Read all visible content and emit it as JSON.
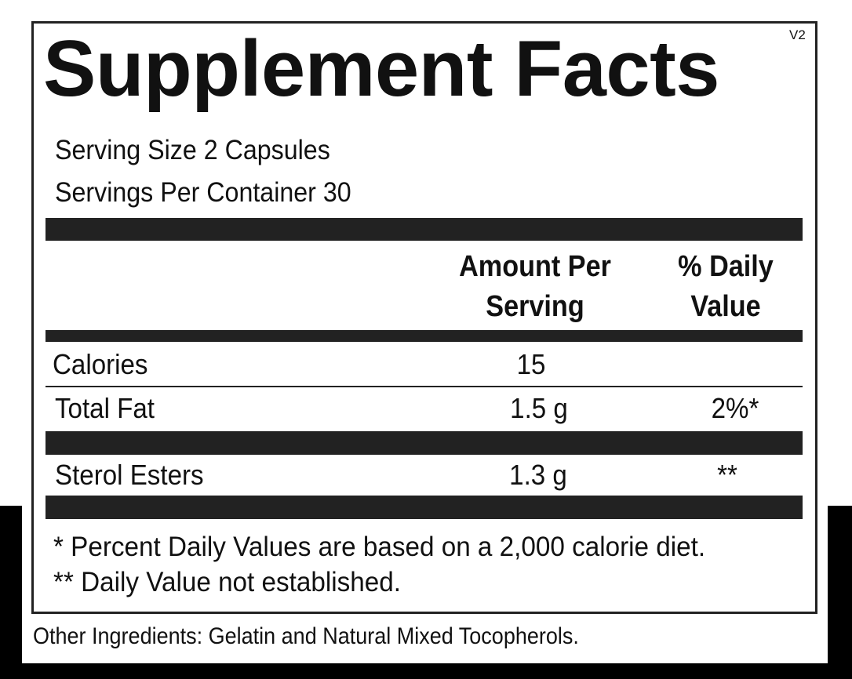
{
  "title": "Supplement Facts",
  "version": "V2",
  "serving_size": "Serving Size 2 Capsules",
  "servings_per_container": "Servings Per Container 30",
  "table": {
    "header": {
      "amount": [
        "Amount Per",
        "Serving"
      ],
      "daily_value": [
        "% Daily",
        "Value"
      ]
    },
    "rows": [
      [
        "Calories",
        "15"
      ],
      [
        "Total Fat",
        "1.5 g",
        "2%*"
      ],
      [
        "Sterol Esters",
        "1.3 g",
        "**"
      ]
    ]
  },
  "footnotes": [
    "* Percent Daily Values are based on a 2,000 calorie diet.",
    "** Daily Value not established."
  ],
  "other_ingredients": "Other Ingredients: Gelatin and Natural Mixed Tocopherols."
}
